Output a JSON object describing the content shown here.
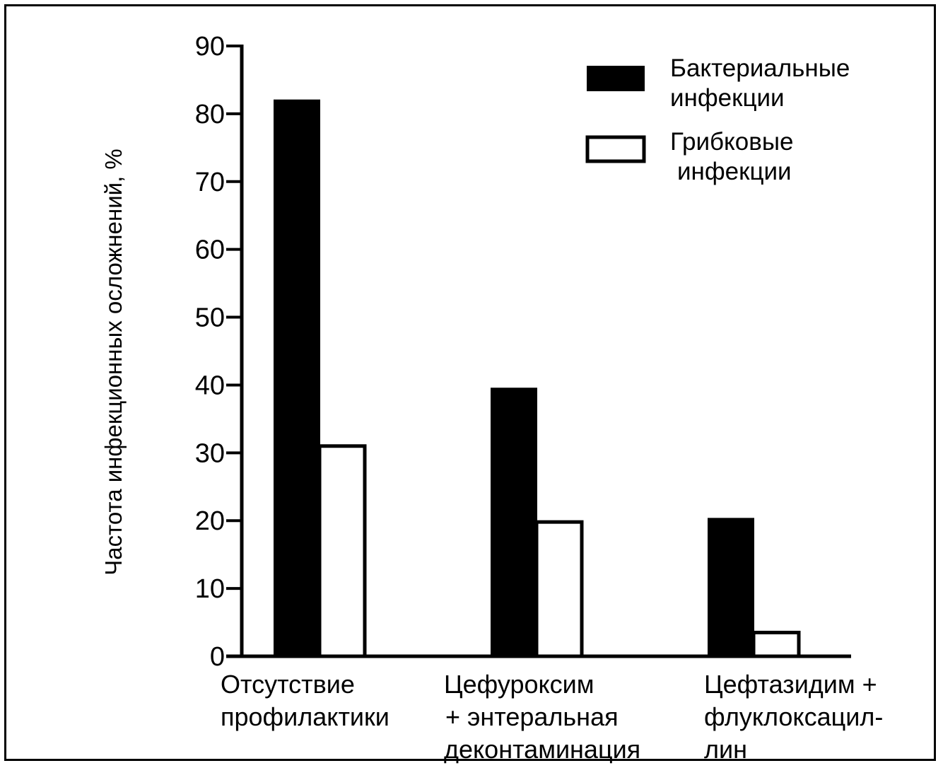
{
  "chart_data": {
    "type": "bar",
    "categories": [
      [
        "Отсутствие",
        "профилактики"
      ],
      [
        "Цефуроксим",
        "+ энтеральная",
        "деконтаминация"
      ],
      [
        "Цефтазидим +",
        "флуклоксацил-",
        "лин"
      ]
    ],
    "series": [
      {
        "name": [
          "Бактериальные",
          "инфекции"
        ],
        "values": [
          82,
          39.5,
          20.3
        ],
        "color": "#000000"
      },
      {
        "name": [
          "Грибковые",
          "инфекции"
        ],
        "values": [
          31,
          19.8,
          3.5
        ],
        "color": "#ffffff"
      }
    ],
    "xlabel": "",
    "ylabel": "Частота инфекционных осложнений, %",
    "ylim": [
      0,
      90
    ],
    "yticks": [
      0,
      10,
      20,
      30,
      40,
      50,
      60,
      70,
      80,
      90
    ],
    "legend_position": "top-right",
    "grid": false
  }
}
